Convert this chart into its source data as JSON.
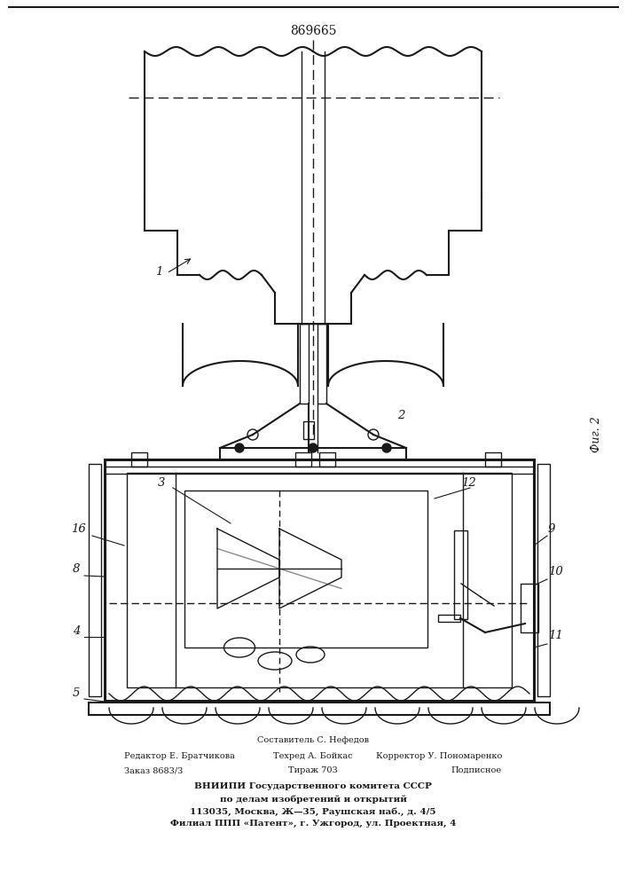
{
  "patent_number": "869665",
  "fig_label": "Фиг. 2",
  "bg_color": "#ffffff",
  "line_color": "#1a1a1a",
  "footer_center": "Составитель С. Нефедов",
  "footer_row2_left": "Редактор Е. Братчикова",
  "footer_row2_mid": "Техред А. Бойкас",
  "footer_row2_right": "Корректор У. Пономаренко",
  "footer_row3_left": "Заказ 8683/3",
  "footer_row3_mid": "Тираж 703",
  "footer_row3_right": "Подписное",
  "footer_vniipи": "ВНИИПИ Государственного комитета СССР",
  "footer_po": "по делам изобретений и открытий",
  "footer_addr": "113035, Москва, Ж—35, Раушская наб., д. 4/5",
  "footer_filial": "Филиал ППП «Патент», г. Ужгород, ул. Проектная, 4"
}
